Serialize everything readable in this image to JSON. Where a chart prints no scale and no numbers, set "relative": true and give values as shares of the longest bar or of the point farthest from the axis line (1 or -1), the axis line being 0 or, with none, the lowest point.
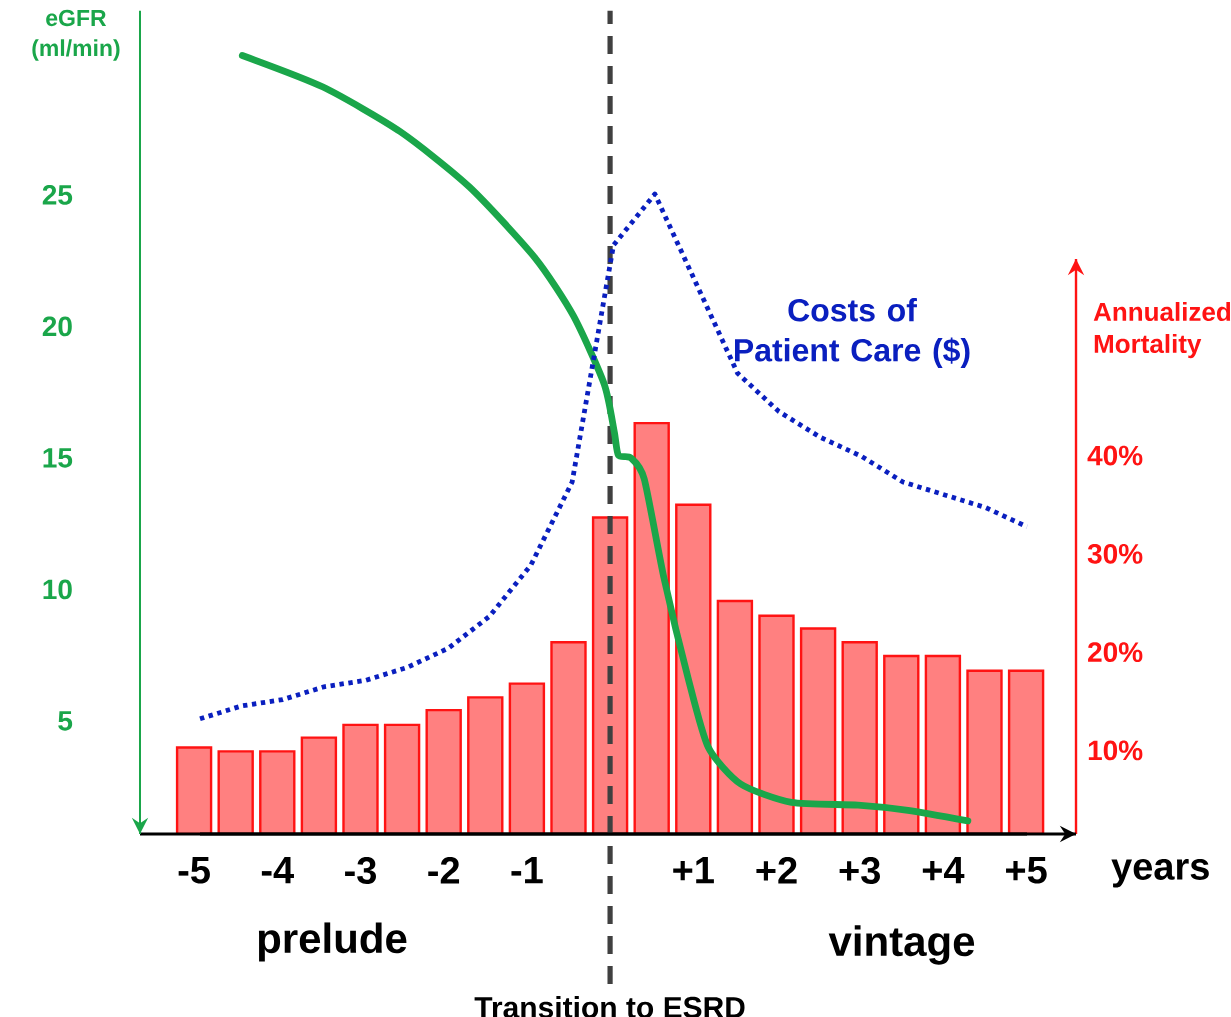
{
  "chart_data": [
    {
      "type": "bar",
      "xlabel": "years",
      "ylabel": "eGFR (ml/min)",
      "y2label": "Annualized Mortality",
      "xlim": [
        -5.65,
        5.6
      ],
      "xticks": [
        -5,
        -4,
        -3,
        -2,
        -1,
        {
          "value": 1,
          "label": "+1"
        },
        {
          "value": 2,
          "label": "+2"
        },
        {
          "value": 3,
          "label": "+3"
        },
        {
          "value": 4,
          "label": "+4"
        },
        {
          "value": 5,
          "label": "+5"
        }
      ],
      "ylim": [
        0.7,
        32
      ],
      "yticks": [
        5,
        10,
        15,
        20,
        25
      ],
      "y2lim": [
        1.5,
        60
      ],
      "y2ticks": [
        {
          "value": 10,
          "label": "10%"
        },
        {
          "value": 20,
          "label": "20%"
        },
        {
          "value": 30,
          "label": "30%"
        },
        {
          "value": 40,
          "label": "40%"
        }
      ],
      "ref_lines": [
        {
          "axis": "x",
          "value": 0,
          "label": "Transition to ESRD",
          "color": "#404040",
          "line_style": "dashed"
        }
      ],
      "annotations": [
        "prelude",
        "vintage"
      ],
      "series": [
        {
          "axis": "y2",
          "color": "#ff8080",
          "x": [
            -5,
            -4.5,
            -4,
            -3.5,
            -3,
            -2.5,
            -2,
            -1.5,
            -1,
            -0.5,
            0,
            0.5,
            1,
            1.5,
            2,
            2.5,
            3,
            3.5,
            4,
            4.5,
            5
          ],
          "values": [
            10.3,
            9.9,
            9.9,
            11.3,
            12.6,
            12.6,
            14.1,
            15.4,
            16.8,
            21.0,
            33.7,
            43.3,
            35.0,
            25.2,
            23.7,
            22.4,
            21.0,
            19.6,
            19.6,
            18.1,
            18.1
          ]
        },
        {
          "type": "line",
          "color": "#1aa64a",
          "x": [
            -4.42,
            -3.45,
            -2.52,
            -1.69,
            -0.9,
            -0.44,
            -0.07,
            0.05,
            0.1,
            0.25,
            0.41,
            0.65,
            0.94,
            1.18,
            1.57,
            2.18,
            2.98,
            3.58,
            4.3
          ],
          "values": [
            30.3,
            29.1,
            27.4,
            25.3,
            22.6,
            20.4,
            17.8,
            16.0,
            15.1,
            15.0,
            14.2,
            10.4,
            6.6,
            4.0,
            2.6,
            1.9,
            1.8,
            1.6,
            1.2
          ]
        }
      ]
    },
    {
      "type": "line",
      "relative": true,
      "categories": [
        null,
        null,
        null,
        null,
        null,
        null,
        null,
        null,
        null,
        null,
        null,
        null,
        null,
        null,
        null,
        null,
        null,
        null,
        null,
        null,
        null
      ],
      "series": [
        {
          "name": "Costs of Patient Care ($)",
          "color": "#0a1fbf",
          "line_style": "dotted",
          "values": [
            0.18,
            0.2,
            0.21,
            0.23,
            0.24,
            0.26,
            0.29,
            0.34,
            0.42,
            0.55,
            0.92,
            1,
            0.86,
            0.72,
            0.66,
            0.62,
            0.59,
            0.55,
            0.53,
            0.51,
            0.48
          ]
        }
      ]
    }
  ]
}
